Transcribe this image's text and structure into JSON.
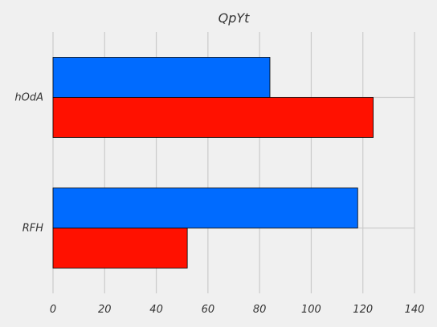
{
  "chart_data": {
    "type": "bar",
    "orientation": "horizontal",
    "title": "QpYt",
    "xlabel": "",
    "ylabel": "",
    "categories": [
      "RFH",
      "hOdA"
    ],
    "series": [
      {
        "color": "#ff1100",
        "values": [
          52,
          124
        ]
      },
      {
        "color": "#006bff",
        "values": [
          118,
          84
        ]
      }
    ],
    "xlim": [
      0,
      140
    ],
    "xticks": [
      0,
      20,
      40,
      60,
      80,
      100,
      120,
      140
    ],
    "grid": true,
    "background": "#f0f0f0"
  }
}
